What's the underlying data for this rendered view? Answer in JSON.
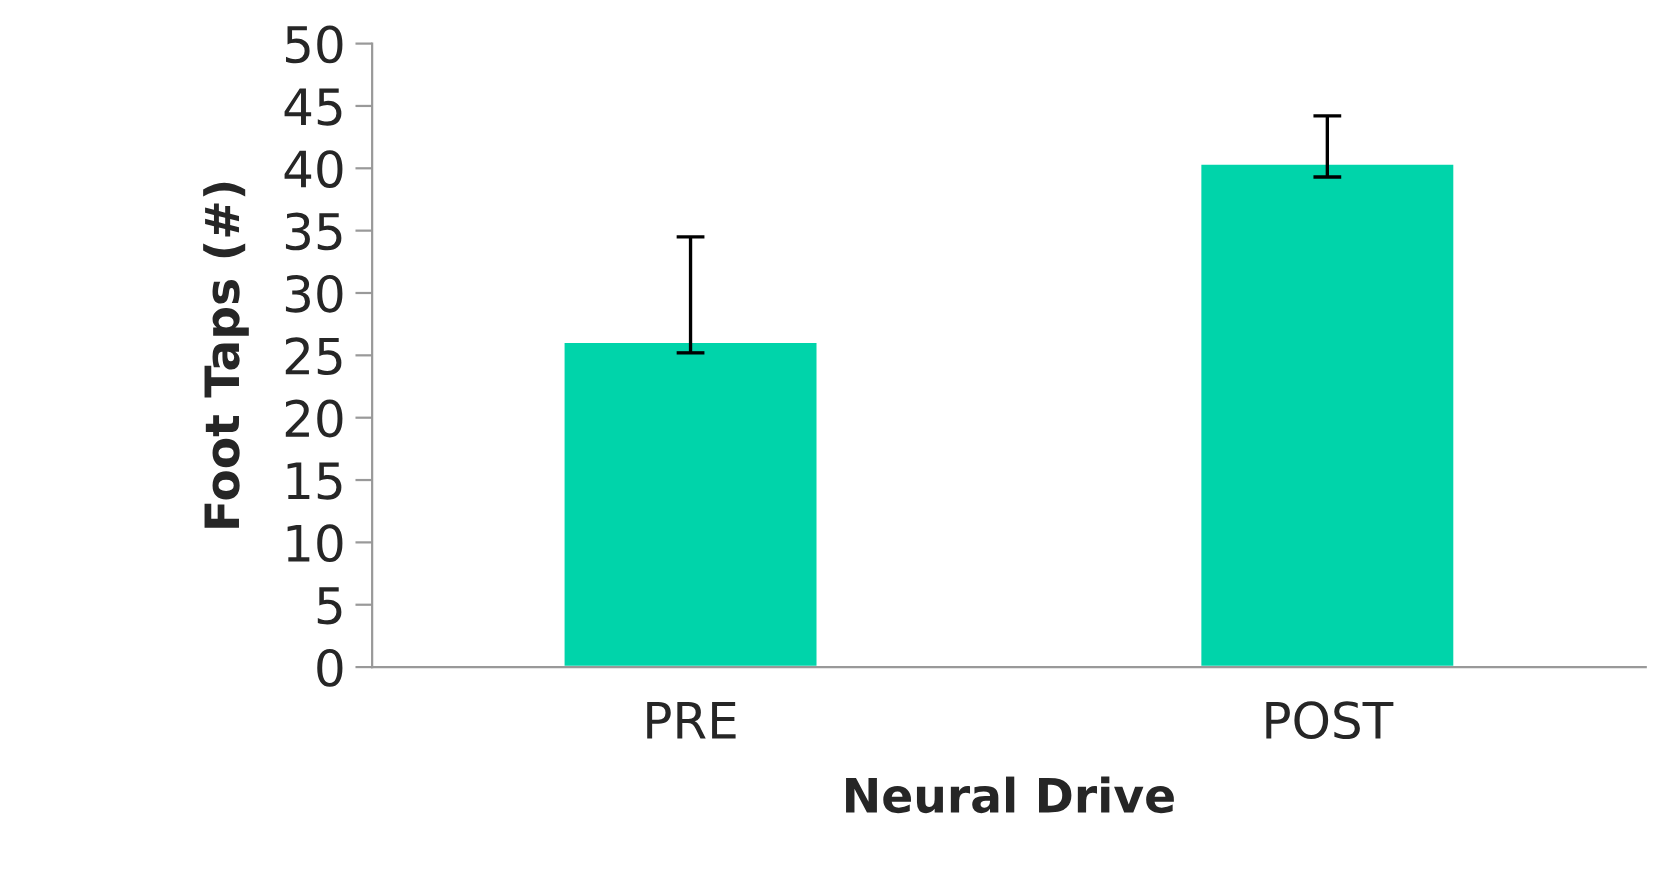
{
  "chart_data": {
    "type": "bar",
    "xlabel": "Neural Drive",
    "ylabel": "Foot Taps (#)",
    "categories": [
      "PRE",
      "POST"
    ],
    "values": [
      26.1,
      40.4
    ],
    "color": "#00d4aa",
    "errors": [
      [
        25.2,
        34.5
      ],
      [
        39.3,
        44.2
      ]
    ],
    "ylim": [
      0,
      50
    ],
    "yticks": [
      0,
      5,
      10,
      15,
      20,
      25,
      30,
      35,
      40,
      45,
      50
    ],
    "grid": false,
    "legend": false
  }
}
